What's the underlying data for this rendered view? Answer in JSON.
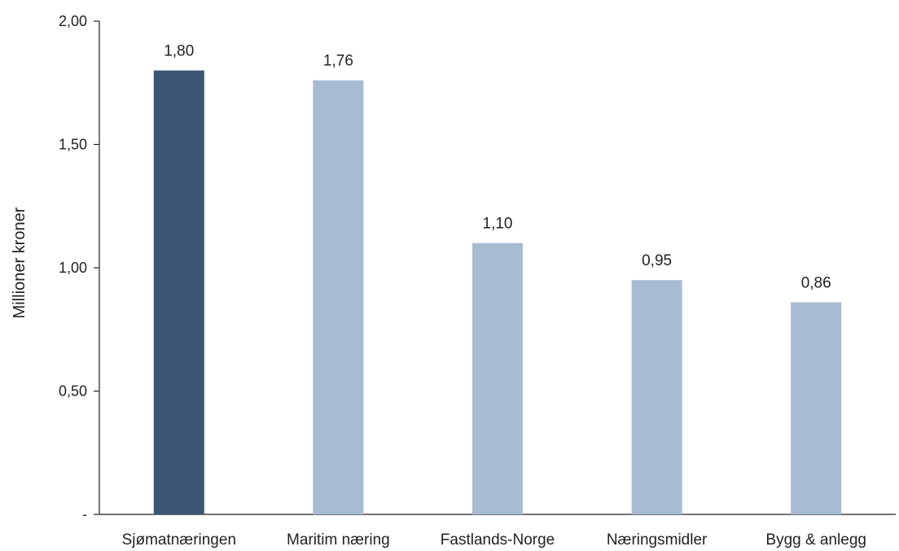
{
  "chart_data": {
    "type": "bar",
    "title": "",
    "xlabel": "",
    "ylabel": "Millioner kroner",
    "categories": [
      "Sjømatnæringen",
      "Maritim næring",
      "Fastlands-Norge",
      "Næringsmidler",
      "Bygg & anlegg"
    ],
    "values": [
      1.8,
      1.76,
      1.1,
      0.95,
      0.86
    ],
    "data_labels": [
      "1,80",
      "1,76",
      "1,10",
      "0,95",
      "0,86"
    ],
    "ylim": [
      0,
      2.0
    ],
    "yticks": [
      0,
      0.5,
      1.0,
      1.5,
      2.0
    ],
    "ytick_labels": [
      "-",
      "0,50",
      "1,00",
      "1,50",
      "2,00"
    ],
    "grid": false,
    "legend": "none",
    "colors": [
      "#3a5674",
      "#a7bcd2",
      "#a7bcd2",
      "#a7bcd2",
      "#a7bcd2"
    ]
  }
}
